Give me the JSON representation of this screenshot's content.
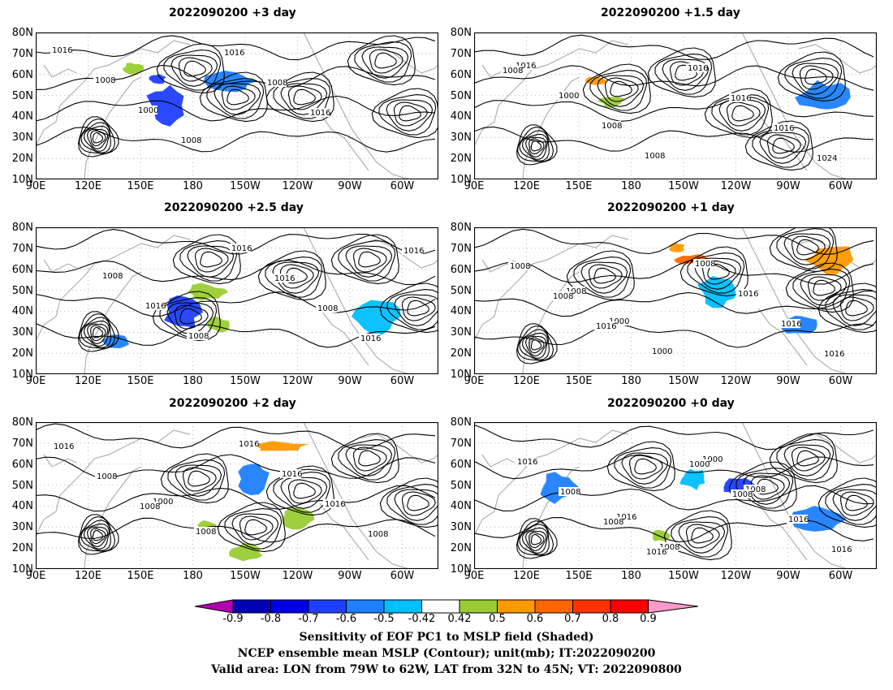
{
  "panels": [
    {
      "title": "2022090200 +3 day",
      "col": 0,
      "row": 0
    },
    {
      "title": "2022090200 +1.5 day",
      "col": 1,
      "row": 0
    },
    {
      "title": "2022090200 +2.5 day",
      "col": 0,
      "row": 1
    },
    {
      "title": "2022090200 +1 day",
      "col": 1,
      "row": 1
    },
    {
      "title": "2022090200 +2 day",
      "col": 0,
      "row": 2
    },
    {
      "title": "2022090200 +0 day",
      "col": 1,
      "row": 2
    }
  ],
  "lat_labels": [
    "80N",
    "70N",
    "60N",
    "50N",
    "40N",
    "30N",
    "20N",
    "10N"
  ],
  "lon_labels": [
    "90E",
    "120E",
    "150E",
    "180",
    "150W",
    "120W",
    "90W",
    "60W"
  ],
  "contour_labels": {
    "p0": [
      "1016",
      "1008",
      "1000",
      "1008",
      "1016",
      "1008",
      "1016"
    ],
    "p1": [
      "1016",
      "1000",
      "1008",
      "1008",
      "1016",
      "1016",
      "1016",
      "1024",
      "1008"
    ],
    "p2": [
      "1008",
      "1016",
      "1008",
      "1016",
      "1016",
      "1008",
      "1016",
      "1016"
    ],
    "p3": [
      "1008",
      "1000",
      "1000",
      "1008",
      "1016",
      "1016",
      "1016",
      "1008",
      "1008",
      "1016"
    ],
    "p4": [
      "1000",
      "1008",
      "1016",
      "1016",
      "1016",
      "1008",
      "1016",
      "1008",
      "1008"
    ],
    "p5": [
      "1016",
      "1008",
      "1000",
      "1008",
      "1016",
      "1016",
      "1016",
      "1008",
      "1008",
      "1016",
      "1000",
      "1008"
    ]
  },
  "colorbar": {
    "colors": [
      "#b300b3",
      "#0000b3",
      "#0000e6",
      "#1f3fff",
      "#1e7fff",
      "#00bfff",
      "#ffffff",
      "#99cc33",
      "#ff9900",
      "#ff6600",
      "#ff3300",
      "#ff0000",
      "#ff99cc"
    ],
    "labels": [
      "-0.9",
      "-0.8",
      "-0.7",
      "-0.6",
      "-0.5",
      "-0.42",
      "0.42",
      "0.5",
      "0.6",
      "0.7",
      "0.8",
      "0.9"
    ]
  },
  "captions": [
    "Sensitivity of EOF PC1 to MSLP field (Shaded)",
    "NCEP ensemble mean MSLP (Contour); unit(mb); IT:2022090200",
    "Valid area: LON from 79W to 62W, LAT from 32N to 45N; VT: 2022090800"
  ]
}
